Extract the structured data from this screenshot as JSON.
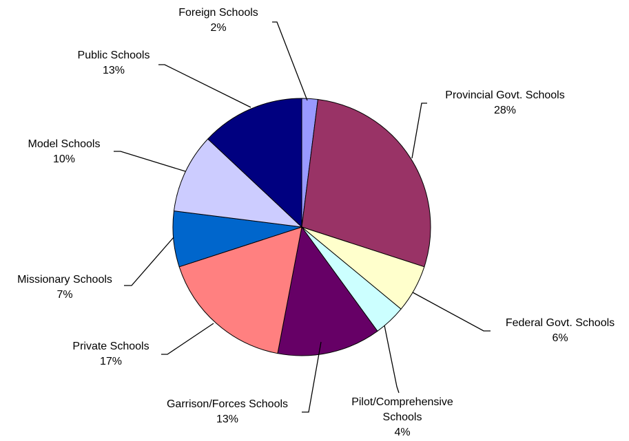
{
  "chart_data": {
    "type": "pie",
    "title": "",
    "slices": [
      {
        "label": [
          "Foreign Schools"
        ],
        "pct_text": "2%",
        "value": 2,
        "color": "#9999FF"
      },
      {
        "label": [
          "Provincial Govt. Schools"
        ],
        "pct_text": "28%",
        "value": 28,
        "color": "#993366"
      },
      {
        "label": [
          "Federal Govt. Schools"
        ],
        "pct_text": "6%",
        "value": 6,
        "color": "#FFFFCC"
      },
      {
        "label": [
          "Pilot/Comprehensive",
          "Schools"
        ],
        "pct_text": "4%",
        "value": 4,
        "color": "#CCFFFF"
      },
      {
        "label": [
          "Garrison/Forces Schools"
        ],
        "pct_text": "13%",
        "value": 13,
        "color": "#660066"
      },
      {
        "label": [
          "Private Schools"
        ],
        "pct_text": "17%",
        "value": 17,
        "color": "#FF8080"
      },
      {
        "label": [
          "Missionary Schools"
        ],
        "pct_text": "7%",
        "value": 7,
        "color": "#0066CC"
      },
      {
        "label": [
          "Model Schools"
        ],
        "pct_text": "10%",
        "value": 10,
        "color": "#CCCCFF"
      },
      {
        "label": [
          "Public Schools"
        ],
        "pct_text": "13%",
        "value": 13,
        "color": "#000080"
      }
    ]
  }
}
